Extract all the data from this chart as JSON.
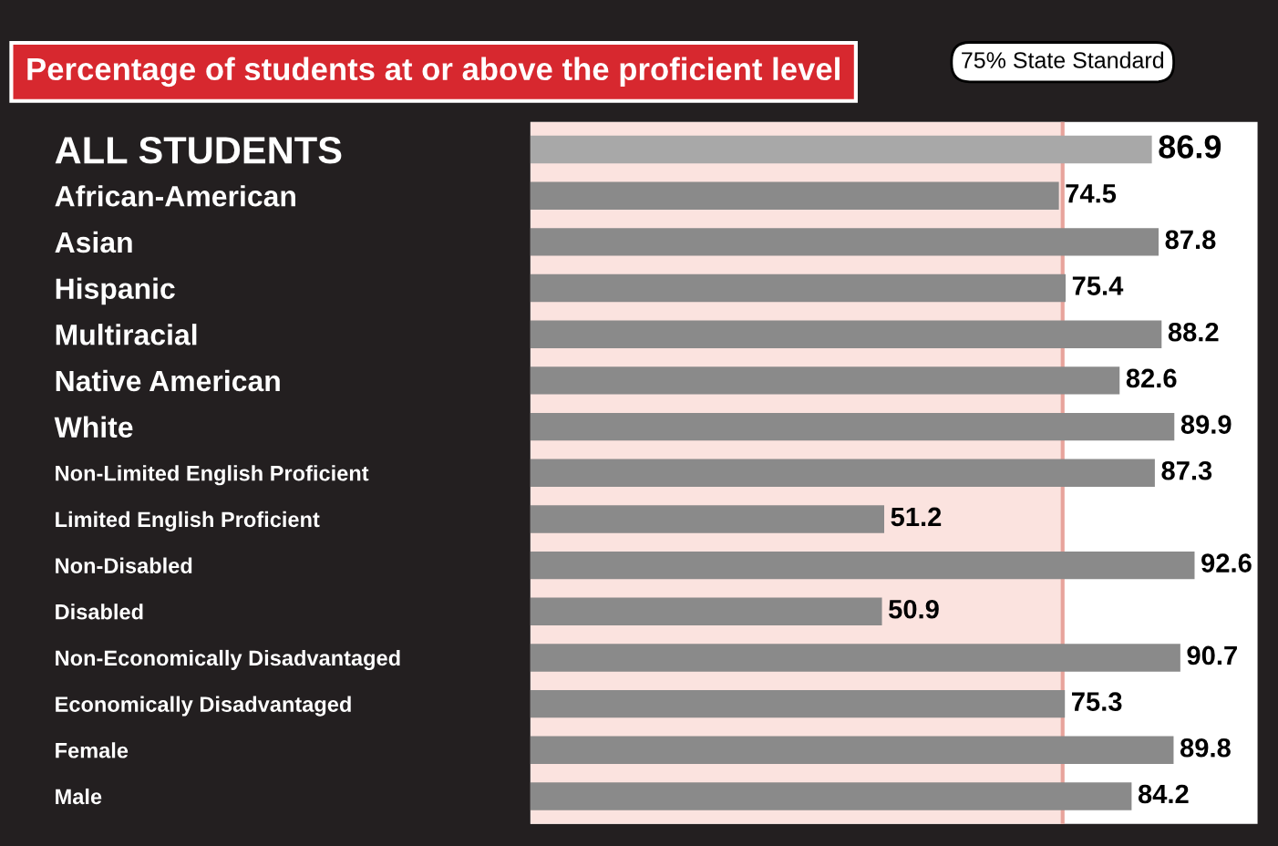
{
  "chart_data": {
    "type": "bar",
    "orientation": "horizontal",
    "title": "Percentage of students at or above the proficient level",
    "categories": [
      "ALL STUDENTS",
      "African-American",
      "Asian",
      "Hispanic",
      "Multiracial",
      "Native American",
      "White",
      "Non-Limited English Proficient",
      "Limited English Proficient",
      "Non-Disabled",
      "Disabled",
      "Non-Economically Disadvantaged",
      "Economically Disadvantaged",
      "Female",
      "Male"
    ],
    "values": [
      86.9,
      74.5,
      87.8,
      75.4,
      88.2,
      82.6,
      89.9,
      87.3,
      51.2,
      92.6,
      50.9,
      90.7,
      75.3,
      89.8,
      84.2
    ],
    "colors": [
      "#a8a8a8",
      "#8a8a8a",
      "#8a8a8a",
      "#8a8a8a",
      "#8a8a8a",
      "#8a8a8a",
      "#8a8a8a",
      "#8a8a8a",
      "#8a8a8a",
      "#8a8a8a",
      "#8a8a8a",
      "#8a8a8a",
      "#8a8a8a",
      "#8a8a8a",
      "#8a8a8a"
    ],
    "xlim": [
      4,
      101
    ],
    "data_labels": true,
    "grid": false,
    "tick_labels": "y",
    "ref_lines": [
      {
        "axis": "x",
        "value": 75,
        "label": "75% State Standard",
        "color": "#e8a49c"
      }
    ],
    "bands": [
      {
        "axis": "x",
        "from": 4,
        "to": 75,
        "color": "#fbe3df"
      }
    ]
  }
}
